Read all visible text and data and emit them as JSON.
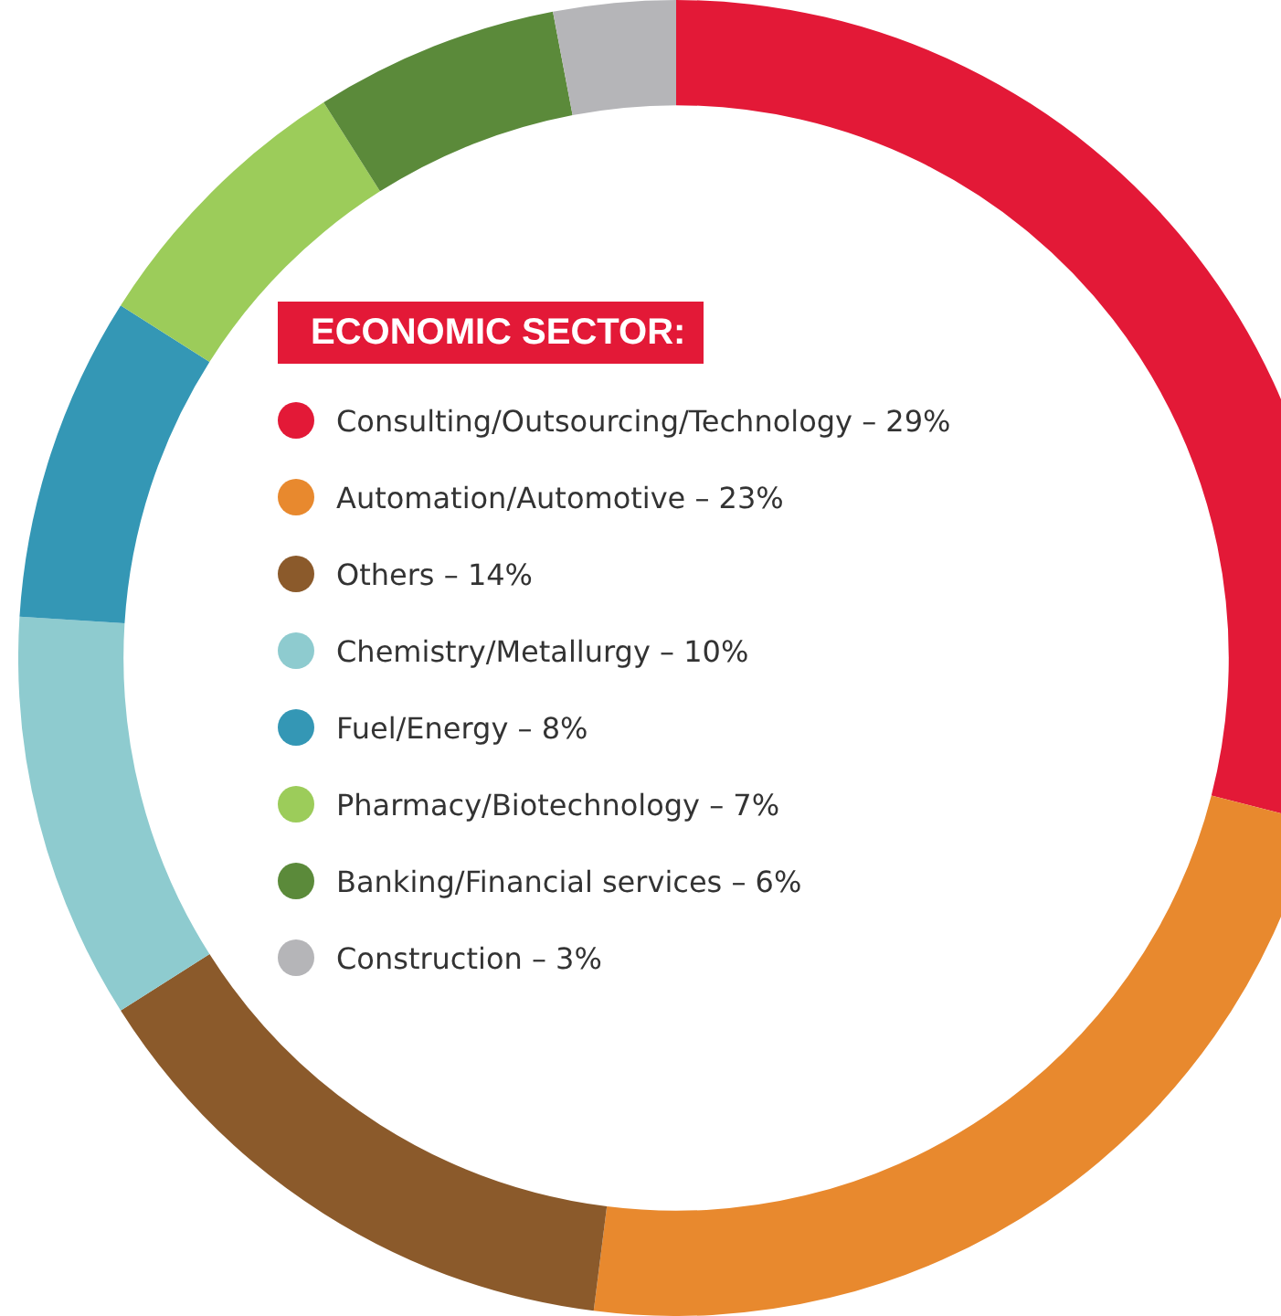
{
  "chart_data": {
    "type": "donut",
    "title": "ECONOMIC SECTOR:",
    "categories": [
      "Consulting/Outsourcing/Technology – 29%",
      "Automation/Automotive – 23%",
      "Others – 14%",
      "Chemistry/Metallurgy – 10%",
      "Fuel/Energy – 8%",
      "Pharmacy/Biotechnology – 7%",
      "Banking/Financial services – 6%",
      "Construction – 3%"
    ],
    "values": [
      29,
      23,
      14,
      10,
      8,
      7,
      6,
      3
    ],
    "colors": [
      "#e31937",
      "#e8892e",
      "#8b5a2b",
      "#8ecbcf",
      "#3497b5",
      "#9ccc5a",
      "#5b8a3a",
      "#b5b5b8"
    ],
    "legend": "center"
  }
}
